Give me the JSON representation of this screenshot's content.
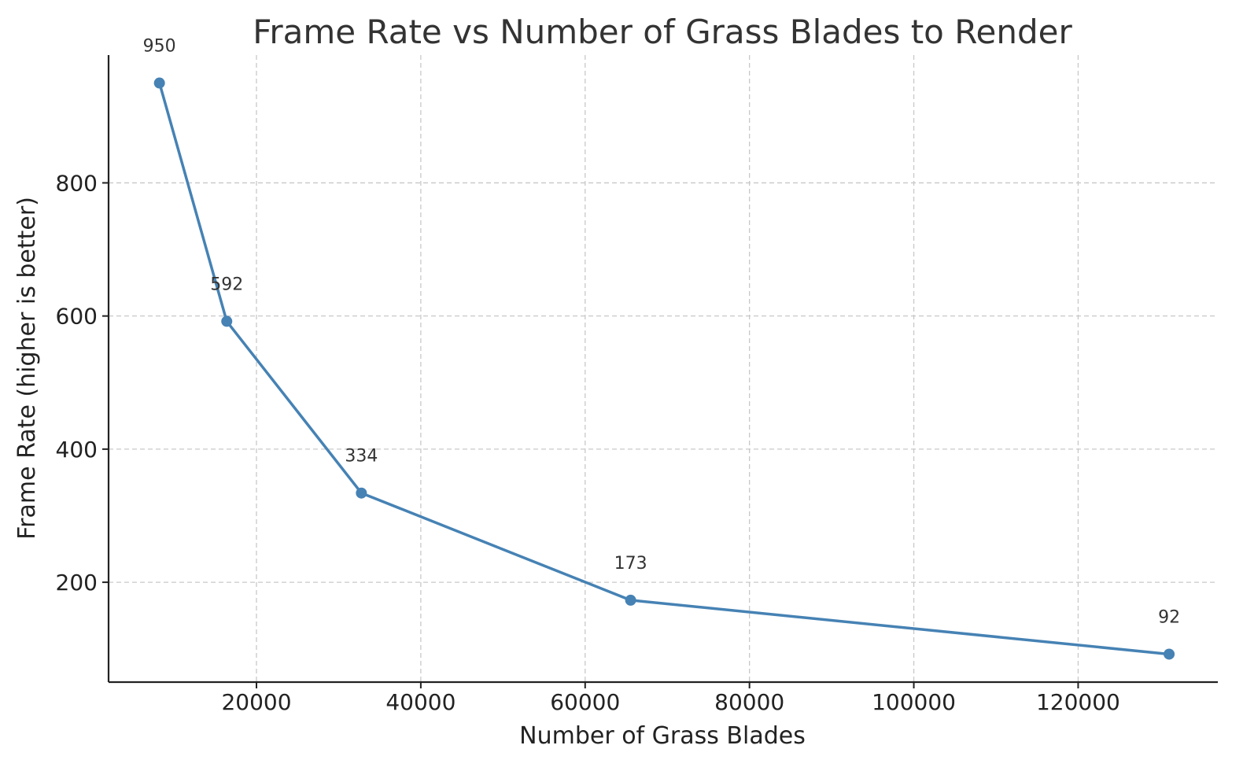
{
  "chart_data": {
    "type": "line",
    "title": "Frame Rate vs Number of Grass Blades to Render",
    "xlabel": "Number of Grass Blades",
    "ylabel": "Frame Rate (higher is better)",
    "x": [
      8192,
      16384,
      32768,
      65536,
      131072
    ],
    "series": [
      {
        "values": [
          950,
          592,
          334,
          173,
          92
        ],
        "color": "#4682b4"
      }
    ],
    "data_labels": [
      "950",
      "592",
      "334",
      "173",
      "92"
    ],
    "xticks": [
      20000,
      40000,
      60000,
      80000,
      100000,
      120000
    ],
    "xtick_labels": [
      "20000",
      "40000",
      "60000",
      "80000",
      "100000",
      "120000"
    ],
    "yticks": [
      200,
      400,
      600,
      800
    ],
    "ytick_labels": [
      "200",
      "400",
      "600",
      "800"
    ],
    "xlim": [
      2000,
      137000
    ],
    "ylim": [
      50,
      992
    ],
    "grid": true,
    "marker": "circle"
  }
}
